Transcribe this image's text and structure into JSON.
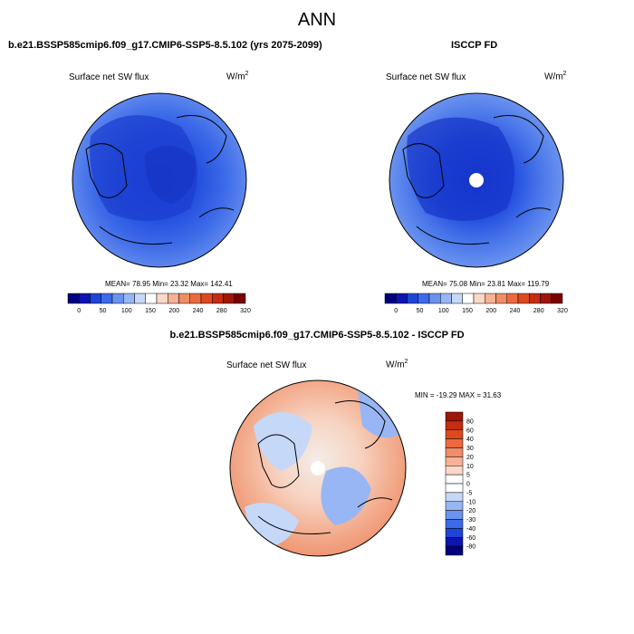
{
  "title": "ANN",
  "panels": {
    "left": {
      "case_title": "b.e21.BSSP585cmip6.f09_g17.CMIP6-SSP5-8.5.102 (yrs 2075-2099)",
      "variable": "Surface net SW flux",
      "units": "W/m",
      "units_exp": "2",
      "stats": "MEAN= 78.95  Min= 23.32  Max= 142.41"
    },
    "right": {
      "case_title": "ISCCP FD",
      "variable": "Surface net SW flux",
      "units": "W/m",
      "units_exp": "2",
      "stats": "MEAN= 75.08  Min= 23.81  Max= 119.79"
    },
    "diff": {
      "case_title": "b.e21.BSSP585cmip6.f09_g17.CMIP6-SSP5-8.5.102 - ISCCP FD",
      "variable": "Surface net SW flux",
      "units": "W/m",
      "units_exp": "2",
      "stats": "MIN = -19.29 MAX =  31.63"
    }
  },
  "chart_data": [
    {
      "type": "heatmap",
      "title": "b.e21.BSSP585cmip6.f09_g17.CMIP6-SSP5-8.5.102 (yrs 2075-2099)",
      "projection": "north polar stereographic",
      "variable": "Surface net SW flux",
      "units": "W/m2",
      "mean": 78.95,
      "min": 23.32,
      "max": 142.41,
      "colorbar": {
        "orientation": "horizontal",
        "tick_labels": [
          "0",
          "50",
          "100",
          "150",
          "200",
          "240",
          "280",
          "320"
        ],
        "colors": [
          "#00007e",
          "#0d14b0",
          "#1e45d8",
          "#3c6ae8",
          "#6a92ee",
          "#98b6f3",
          "#c6d8f8",
          "#ffffff",
          "#fbd8c8",
          "#f6b196",
          "#f08c66",
          "#eb6a3f",
          "#dd4a1e",
          "#c42d10",
          "#9e1608",
          "#780000"
        ]
      }
    },
    {
      "type": "heatmap",
      "title": "ISCCP FD",
      "projection": "north polar stereographic",
      "variable": "Surface net SW flux",
      "units": "W/m2",
      "mean": 75.08,
      "min": 23.81,
      "max": 119.79,
      "colorbar": {
        "orientation": "horizontal",
        "tick_labels": [
          "0",
          "50",
          "100",
          "150",
          "200",
          "240",
          "280",
          "320"
        ],
        "colors": [
          "#00007e",
          "#0d14b0",
          "#1e45d8",
          "#3c6ae8",
          "#6a92ee",
          "#98b6f3",
          "#c6d8f8",
          "#ffffff",
          "#fbd8c8",
          "#f6b196",
          "#f08c66",
          "#eb6a3f",
          "#dd4a1e",
          "#c42d10",
          "#9e1608",
          "#780000"
        ]
      }
    },
    {
      "type": "heatmap",
      "title": "b.e21.BSSP585cmip6.f09_g17.CMIP6-SSP5-8.5.102 - ISCCP FD",
      "projection": "north polar stereographic",
      "variable": "Surface net SW flux",
      "units": "W/m2",
      "min": -19.29,
      "max": 31.63,
      "colorbar": {
        "orientation": "vertical",
        "tick_labels": [
          "80",
          "60",
          "40",
          "30",
          "20",
          "10",
          "5",
          "0",
          "-5",
          "-10",
          "-20",
          "-30",
          "-40",
          "-60",
          "-80"
        ],
        "colors": [
          "#9e1608",
          "#c42d10",
          "#dd4a1e",
          "#eb6a3f",
          "#f08c66",
          "#f6b196",
          "#fbd8c8",
          "#ffffff",
          "#ffffff",
          "#c6d8f8",
          "#98b6f3",
          "#6a92ee",
          "#3c6ae8",
          "#1e45d8",
          "#0d14b0",
          "#00007e"
        ]
      }
    }
  ]
}
